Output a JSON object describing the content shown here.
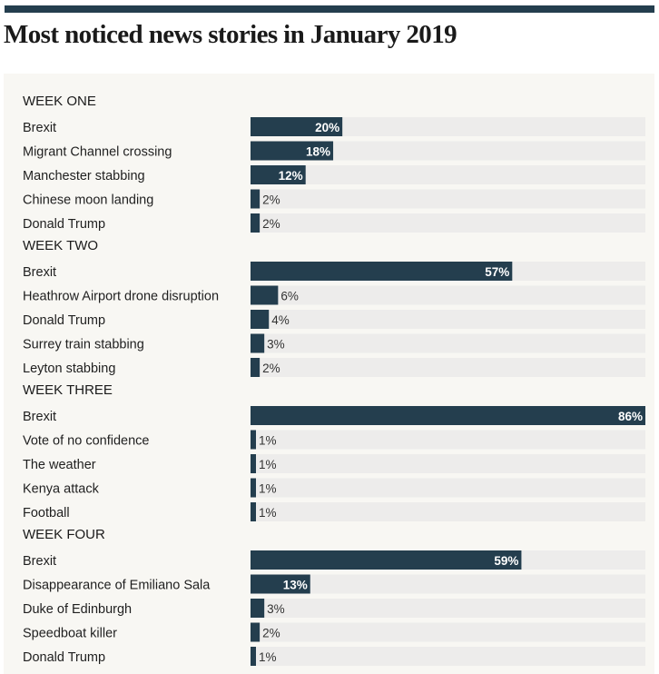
{
  "title": "Most noticed news stories in January 2019",
  "colors": {
    "bar": "#243e4e",
    "track": "#edeceb",
    "panel": "#f8f7f3",
    "rule": "#243e4e"
  },
  "chart_data": {
    "type": "bar",
    "orientation": "horizontal",
    "title": "Most noticed news stories in January 2019",
    "xlim": [
      0,
      86
    ],
    "unit": "%",
    "grid": false,
    "groups": [
      {
        "name": "WEEK ONE",
        "categories": [
          "Brexit",
          "Migrant Channel crossing",
          "Manchester stabbing",
          "Chinese moon landing",
          "Donald Trump"
        ],
        "values": [
          20,
          18,
          12,
          2,
          2
        ]
      },
      {
        "name": "WEEK TWO",
        "categories": [
          "Brexit",
          "Heathrow Airport drone disruption",
          "Donald Trump",
          "Surrey train stabbing",
          "Leyton stabbing"
        ],
        "values": [
          57,
          6,
          4,
          3,
          2
        ]
      },
      {
        "name": "WEEK THREE",
        "categories": [
          "Brexit",
          "Vote of no confidence",
          "The weather",
          "Kenya attack",
          "Football"
        ],
        "values": [
          86,
          1,
          1,
          1,
          1
        ]
      },
      {
        "name": "WEEK FOUR",
        "categories": [
          "Brexit",
          "Disappearance of Emiliano Sala",
          "Duke of Edinburgh",
          "Speedboat killer",
          "Donald Trump"
        ],
        "values": [
          59,
          13,
          3,
          2,
          1
        ]
      }
    ]
  }
}
